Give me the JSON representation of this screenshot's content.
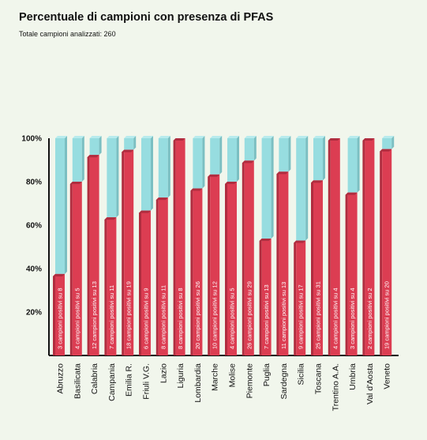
{
  "title": "Percentuale di campioni con presenza di PFAS",
  "subtitle": "Totale campioni analizzati: 260",
  "colors": {
    "positive": "#dc3d52",
    "positive_dark": "#b02d3f",
    "remainder": "#97dde0",
    "remainder_dark": "#7bbfc2",
    "axis": "#111111"
  },
  "chart_data": {
    "type": "bar",
    "stacked": true,
    "title": "Percentuale di campioni con presenza di PFAS",
    "subtitle": "Totale campioni analizzati: 260",
    "ylim": [
      0,
      100
    ],
    "y_ticks": [
      20,
      40,
      60,
      80,
      100
    ],
    "y_tick_labels": [
      "20%",
      "40%",
      "60%",
      "80%",
      "100%"
    ],
    "categories": [
      "Abruzzo",
      "Basilicata",
      "Calabria",
      "Campania",
      "Emilia R.",
      "Friuli V.G.",
      "Lazio",
      "Liguria",
      "Lombardia",
      "Marche",
      "Molise",
      "Piemonte",
      "Puglia",
      "Sardegna",
      "Sicilia",
      "Toscana",
      "Trentino A.A.",
      "Umbria",
      "Val d'Aosta",
      "Veneto"
    ],
    "values": [
      37.5,
      80,
      92.3,
      63.6,
      94.7,
      66.7,
      72.7,
      100,
      76.9,
      83.3,
      80,
      89.7,
      53.8,
      84.6,
      52.9,
      80.6,
      100,
      75,
      100,
      95
    ],
    "bar_labels": [
      "3 campioni positivi su 8",
      "4 campioni positivi su 5",
      "12 campioni positivi su 13",
      "7 campioni positivi su 11",
      "18 campioni positivi su 19",
      "6 campioni positivi su 9",
      "8 campioni positivi su 11",
      "8 campioni positivi su 8",
      "20 campioni positivi su 26",
      "10 campioni positivi su 12",
      "4 campioni positivi su 5",
      "26 campioni positivi su 29",
      "7 campioni positivi su 13",
      "11 campioni positivi su 13",
      "9 campioni positivi su 17",
      "25 campioni positivi su 31",
      "4 campioni positivi su 4",
      "3 campioni positivi su 4",
      "2 campioni positivi su 2",
      "19 campioni positivi su 20"
    ],
    "grid": false,
    "legend": "none"
  }
}
